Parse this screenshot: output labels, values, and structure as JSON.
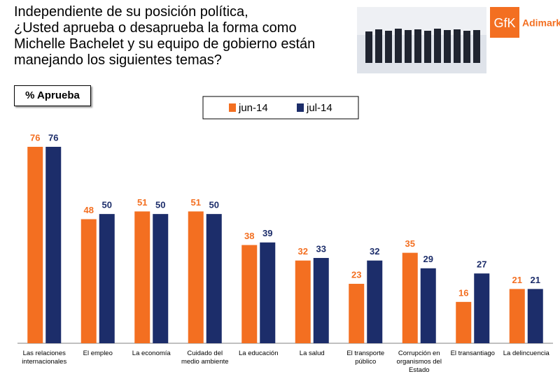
{
  "chart_data": {
    "type": "bar",
    "title": "Independiente de su posición política,\n¿Usted aprueba o desaprueba la forma como\nMichelle Bachelet y su equipo de gobierno están\nmanejando los siguientes temas?",
    "subtitle": "% Aprueba",
    "logo": {
      "brand": "GfK",
      "name": "Adimark"
    },
    "categories": [
      "Las relaciones\ninternacionales",
      "El empleo",
      "La economía",
      "Cuidado del\nmedio ambiente",
      "La educación",
      "La salud",
      "El transporte\npúblico",
      "Corrupción en\norganismos del\nEstado",
      "El transantiago",
      "La delincuencia"
    ],
    "series": [
      {
        "name": "jun-14",
        "color": "#f36f21",
        "values": [
          76,
          48,
          51,
          51,
          38,
          32,
          23,
          35,
          16,
          21
        ]
      },
      {
        "name": "jul-14",
        "color": "#1c2d6a",
        "values": [
          76,
          50,
          50,
          50,
          39,
          33,
          32,
          29,
          27,
          21
        ]
      }
    ],
    "legend": "top-center"
  }
}
